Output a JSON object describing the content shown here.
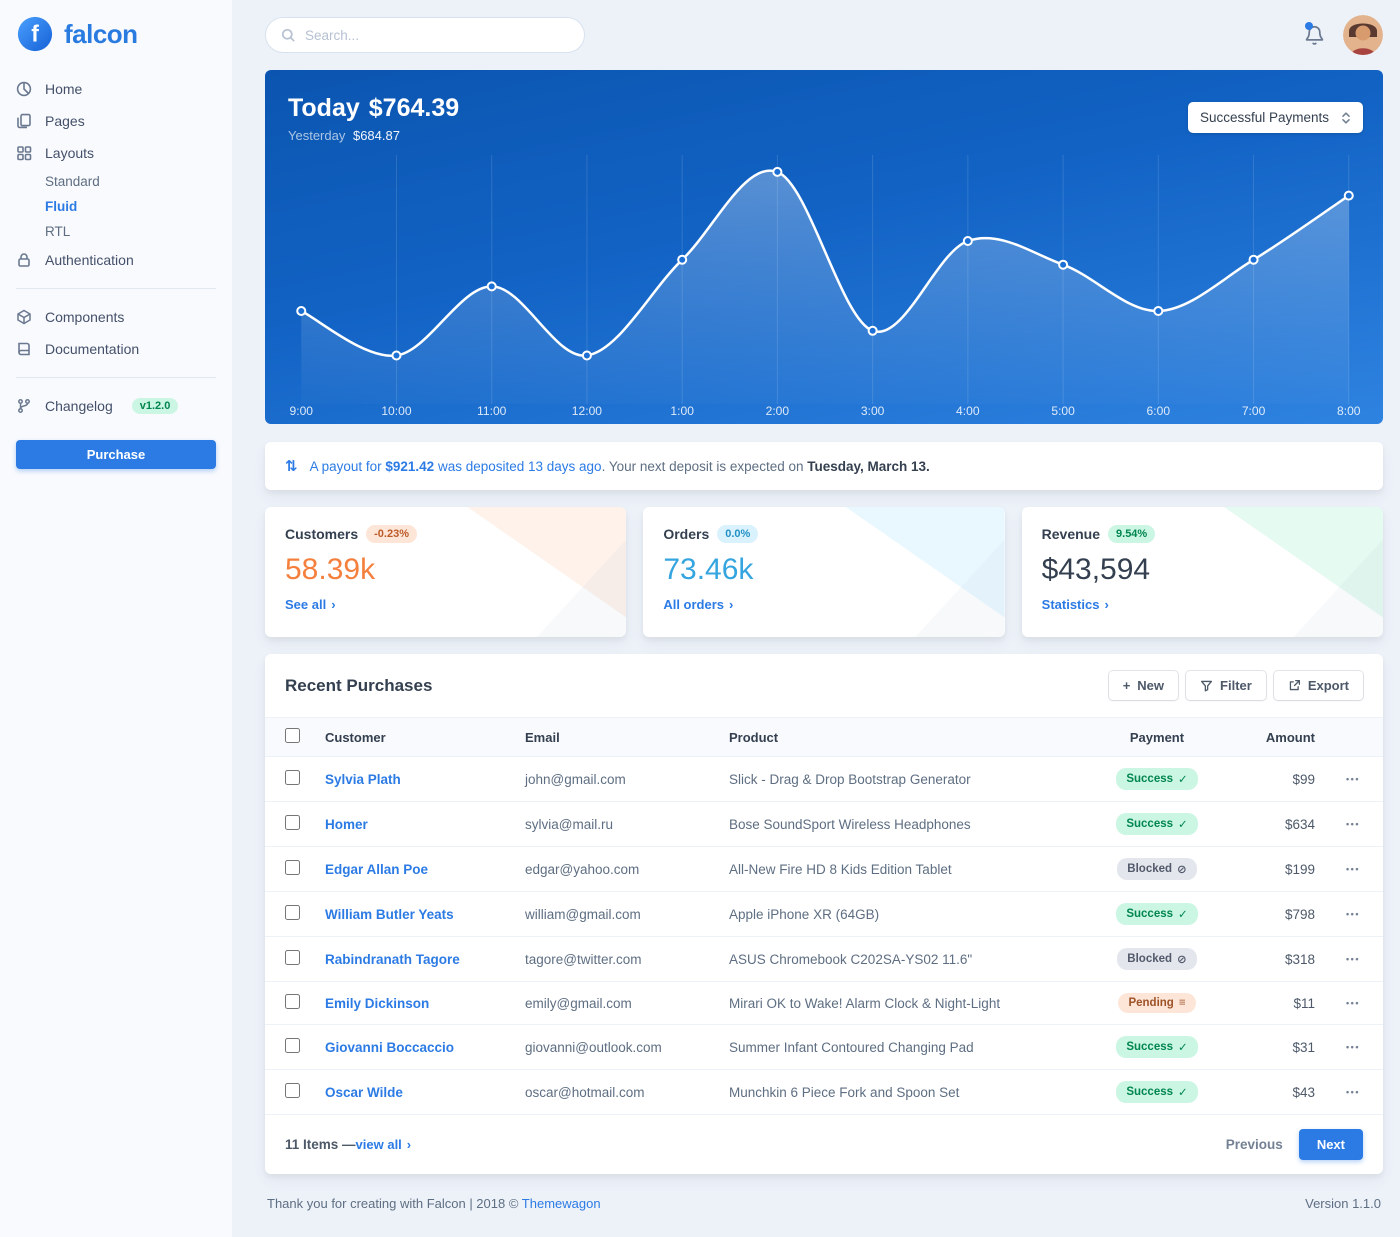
{
  "colors": {
    "primary": "#2c7be5",
    "success": "#00d27a",
    "info": "#27bcfd",
    "warning": "#f5803e",
    "chart_gradient_top": "#0b55b0",
    "chart_gradient_bottom": "#2f83e0",
    "background": "#edf2f9"
  },
  "brand": {
    "name": "falcon"
  },
  "topbar": {
    "search_placeholder": "Search..."
  },
  "sidebar": {
    "home": "Home",
    "pages": "Pages",
    "layouts": "Layouts",
    "standard": "Standard",
    "fluid": "Fluid",
    "rtl": "RTL",
    "authentication": "Authentication",
    "components": "Components",
    "documentation": "Documentation",
    "changelog": "Changelog",
    "changelog_badge": "v1.2.0",
    "purchase": "Purchase"
  },
  "payments": {
    "today_label": "Today",
    "today_value": "$764.39",
    "yesterday_label": "Yesterday",
    "yesterday_value": "$684.87",
    "filter_value": "Successful Payments"
  },
  "chart_data": {
    "type": "line",
    "title": "Today $764.39",
    "subtitle": "Yesterday $684.87",
    "x": [
      "9:00",
      "10:00",
      "11:00",
      "12:00",
      "1:00",
      "2:00",
      "3:00",
      "4:00",
      "5:00",
      "6:00",
      "7:00",
      "8:00"
    ],
    "series": [
      {
        "name": "Successful Payments",
        "values": [
          80,
          35,
          105,
          35,
          132,
          221,
          60,
          151,
          127,
          80,
          132,
          197
        ]
      }
    ],
    "ylim": [
      0,
      230
    ],
    "grid": "vertical",
    "legend": "none",
    "line_color": "#ffffff"
  },
  "payout_notice": {
    "link_part1": "A payout for ",
    "amount": "$921.42",
    "link_part2": " was deposited 13 days ago",
    "rest": ". Your next deposit is expected on ",
    "date": "Tuesday, March 13."
  },
  "stats": [
    {
      "title": "Customers",
      "badge": "-0.23%",
      "badge_tone": "warning",
      "value": "58.39k",
      "value_tone": "warning",
      "link": "See all"
    },
    {
      "title": "Orders",
      "badge": "0.0%",
      "badge_tone": "info",
      "value": "73.46k",
      "value_tone": "info",
      "link": "All orders"
    },
    {
      "title": "Revenue",
      "badge": "9.54%",
      "badge_tone": "success",
      "value": "$43,594",
      "value_tone": "dark",
      "link": "Statistics"
    }
  ],
  "recent_purchases": {
    "title": "Recent Purchases",
    "actions": {
      "new": "New",
      "filter": "Filter",
      "export": "Export"
    },
    "columns": {
      "customer": "Customer",
      "email": "Email",
      "product": "Product",
      "payment": "Payment",
      "amount": "Amount"
    },
    "rows": [
      {
        "customer": "Sylvia Plath",
        "email": "john@gmail.com",
        "product": "Slick - Drag & Drop Bootstrap Generator",
        "payment": "Success",
        "payment_type": "success",
        "payment_icon": "✓",
        "amount": "$99"
      },
      {
        "customer": "Homer",
        "email": "sylvia@mail.ru",
        "product": "Bose SoundSport Wireless Headphones",
        "payment": "Success",
        "payment_type": "success",
        "payment_icon": "✓",
        "amount": "$634"
      },
      {
        "customer": "Edgar Allan Poe",
        "email": "edgar@yahoo.com",
        "product": "All-New Fire HD 8 Kids Edition Tablet",
        "payment": "Blocked",
        "payment_type": "blocked",
        "payment_icon": "⊘",
        "amount": "$199"
      },
      {
        "customer": "William Butler Yeats",
        "email": "william@gmail.com",
        "product": "Apple iPhone XR (64GB)",
        "payment": "Success",
        "payment_type": "success",
        "payment_icon": "✓",
        "amount": "$798"
      },
      {
        "customer": "Rabindranath Tagore",
        "email": "tagore@twitter.com",
        "product": "ASUS Chromebook C202SA-YS02 11.6\"",
        "payment": "Blocked",
        "payment_type": "blocked",
        "payment_icon": "⊘",
        "amount": "$318"
      },
      {
        "customer": "Emily Dickinson",
        "email": "emily@gmail.com",
        "product": "Mirari OK to Wake! Alarm Clock & Night-Light",
        "payment": "Pending",
        "payment_type": "pending",
        "payment_icon": "≡",
        "amount": "$11"
      },
      {
        "customer": "Giovanni Boccaccio",
        "email": "giovanni@outlook.com",
        "product": "Summer Infant Contoured Changing Pad",
        "payment": "Success",
        "payment_type": "success",
        "payment_icon": "✓",
        "amount": "$31"
      },
      {
        "customer": "Oscar Wilde",
        "email": "oscar@hotmail.com",
        "product": "Munchkin 6 Piece Fork and Spoon Set",
        "payment": "Success",
        "payment_type": "success",
        "payment_icon": "✓",
        "amount": "$43"
      }
    ],
    "footer": {
      "count_text": "11 Items — ",
      "view_all": "view all",
      "previous": "Previous",
      "next": "Next"
    }
  },
  "page_footer": {
    "thanks": "Thank you for creating with Falcon | 2018 © ",
    "link": "Themewagon",
    "version": "Version 1.1.0"
  },
  "icons": {
    "chevron_right": "›",
    "ellipsis": "•••",
    "plus": "+",
    "payout_arrows": "⇅"
  }
}
